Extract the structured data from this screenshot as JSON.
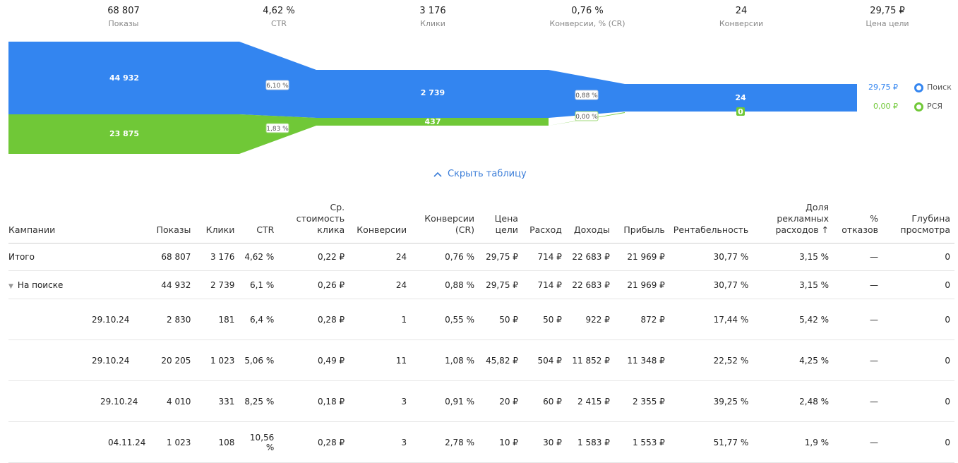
{
  "summary": [
    {
      "value": "68 807",
      "label": "Показы"
    },
    {
      "value": "4,62 %",
      "label": "CTR"
    },
    {
      "value": "3 176",
      "label": "Клики"
    },
    {
      "value": "0,76 %",
      "label": "Конверсии, % (CR)"
    },
    {
      "value": "24",
      "label": "Конверсии"
    },
    {
      "value": "29,75 ₽",
      "label": "Цена цели"
    }
  ],
  "funnel": {
    "colors": {
      "search": "#3385f0",
      "rsya": "#70c837"
    },
    "impressions": {
      "search": "44 932",
      "rsya": "23 875"
    },
    "ctr": {
      "search": "6,10 %",
      "rsya": "1,83 %"
    },
    "clicks": {
      "search": "2 739",
      "rsya": "437"
    },
    "cr": {
      "search": "0,88 %",
      "rsya": "0,00 %"
    },
    "conversions": {
      "search": "24",
      "rsya": "0"
    }
  },
  "legend": [
    {
      "value": "29,75 ₽",
      "name": "Поиск",
      "color": "#3385f0"
    },
    {
      "value": "0,00 ₽",
      "name": "РСЯ",
      "color": "#70c837"
    }
  ],
  "toggle_label": "Скрыть таблицу",
  "table": {
    "headers": [
      "Кампании",
      "Показы",
      "Клики",
      "CTR",
      "Ср.\nстоимость\nклика",
      "Конверсии",
      "Конверсии\n(CR)",
      "Цена\nцели",
      "Расход",
      "Доходы",
      "Прибыль",
      "Рентабельность",
      "Доля\nрекламных\nрасходов ↑",
      "%\nотказов",
      "Глубина\nпросмотра"
    ],
    "total": [
      "Итого",
      "68 807",
      "3 176",
      "4,62 %",
      "0,22 ₽",
      "24",
      "0,76 %",
      "29,75 ₽",
      "714 ₽",
      "22 683 ₽",
      "21 969 ₽",
      "30,77 %",
      "3,15 %",
      "—",
      "0"
    ],
    "group": [
      "На поиске",
      "44 932",
      "2 739",
      "6,1 %",
      "0,26 ₽",
      "24",
      "0,88 %",
      "29,75 ₽",
      "714 ₽",
      "22 683 ₽",
      "21 969 ₽",
      "30,77 %",
      "3,15 %",
      "—",
      "0"
    ],
    "rows": [
      [
        "29.10.24",
        "2 830",
        "181",
        "6,4 %",
        "0,28 ₽",
        "1",
        "0,55 %",
        "50 ₽",
        "50 ₽",
        "922 ₽",
        "872 ₽",
        "17,44 %",
        "5,42 %",
        "—",
        "0"
      ],
      [
        "29.10.24",
        "20 205",
        "1 023",
        "5,06 %",
        "0,49 ₽",
        "11",
        "1,08 %",
        "45,82 ₽",
        "504 ₽",
        "11 852 ₽",
        "11 348 ₽",
        "22,52 %",
        "4,25 %",
        "—",
        "0"
      ],
      [
        "29.10.24",
        "4 010",
        "331",
        "8,25 %",
        "0,18 ₽",
        "3",
        "0,91 %",
        "20 ₽",
        "60 ₽",
        "2 415 ₽",
        "2 355 ₽",
        "39,25 %",
        "2,48 %",
        "—",
        "0"
      ],
      [
        "04.11.24",
        "1 023",
        "108",
        "10,56 %",
        "0,28 ₽",
        "3",
        "2,78 %",
        "10 ₽",
        "30 ₽",
        "1 583 ₽",
        "1 553 ₽",
        "51,77 %",
        "1,9 %",
        "—",
        "0"
      ]
    ]
  }
}
